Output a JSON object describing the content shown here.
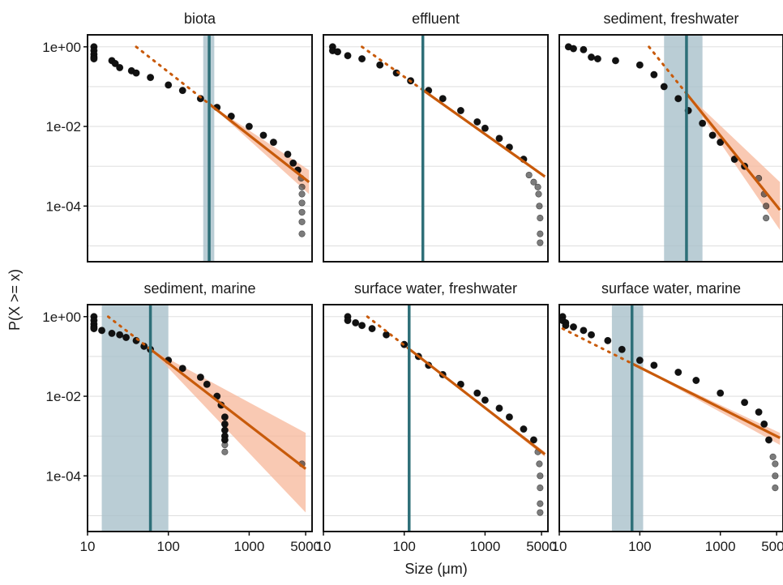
{
  "figure": {
    "ylabel": "P(X >= x)",
    "xlabel": "Size (μm)"
  },
  "colors": {
    "points": "#111111",
    "fit_line": "#c85a0a",
    "fit_ribbon": "#f7b79a",
    "xmin_line": "#2e6f78",
    "xmin_ribbon": "#a9c0cb",
    "grid": "#d9d9d9"
  },
  "chart_data": [
    {
      "type": "scatter",
      "title": "biota",
      "xlim": [
        10,
        6000
      ],
      "ylim": [
        4e-06,
        2
      ],
      "scale": "log-log",
      "yticks": [
        {
          "v": 1,
          "label": "1e+00"
        },
        {
          "v": 0.01,
          "label": "1e-02"
        },
        {
          "v": 0.0001,
          "label": "1e-04"
        }
      ],
      "xticks": [],
      "points": [
        [
          12,
          1
        ],
        [
          12,
          0.8
        ],
        [
          12,
          0.65
        ],
        [
          12,
          0.55
        ],
        [
          12,
          0.5
        ],
        [
          20,
          0.45
        ],
        [
          22,
          0.38
        ],
        [
          25,
          0.3
        ],
        [
          35,
          0.25
        ],
        [
          40,
          0.22
        ],
        [
          60,
          0.17
        ],
        [
          100,
          0.11
        ],
        [
          150,
          0.08
        ],
        [
          250,
          0.05
        ],
        [
          400,
          0.03
        ],
        [
          600,
          0.018
        ],
        [
          1000,
          0.01
        ],
        [
          1500,
          0.006
        ],
        [
          2000,
          0.004
        ],
        [
          3000,
          0.002
        ],
        [
          3500,
          0.0012
        ],
        [
          4000,
          0.0008
        ],
        [
          4400,
          0.0005
        ],
        [
          4500,
          0.0003
        ],
        [
          4500,
          0.0002
        ],
        [
          4500,
          0.00012
        ],
        [
          4500,
          7e-05
        ],
        [
          4500,
          4e-05
        ],
        [
          4500,
          2e-05
        ]
      ],
      "xmin": {
        "value": 320,
        "ci": [
          270,
          370
        ]
      },
      "fit": {
        "x_start": 40,
        "y_start": 1,
        "x_end": 5500,
        "y_end": 0.0004
      },
      "fit_band": {
        "lower_end": 0.0002,
        "upper_end": 0.0008
      }
    },
    {
      "type": "scatter",
      "title": "effluent",
      "xlim": [
        10,
        6000
      ],
      "ylim": [
        4e-06,
        2
      ],
      "scale": "log-log",
      "yticks": [],
      "xticks": [],
      "points": [
        [
          13,
          1
        ],
        [
          13,
          0.8
        ],
        [
          15,
          0.75
        ],
        [
          20,
          0.6
        ],
        [
          30,
          0.5
        ],
        [
          50,
          0.35
        ],
        [
          80,
          0.22
        ],
        [
          120,
          0.14
        ],
        [
          200,
          0.08
        ],
        [
          300,
          0.05
        ],
        [
          500,
          0.025
        ],
        [
          800,
          0.013
        ],
        [
          1000,
          0.009
        ],
        [
          1500,
          0.005
        ],
        [
          2000,
          0.003
        ],
        [
          3000,
          0.0015
        ],
        [
          3500,
          0.0006
        ],
        [
          4000,
          0.0004
        ],
        [
          4500,
          0.0003
        ],
        [
          4600,
          0.0002
        ],
        [
          4700,
          0.0001
        ],
        [
          4800,
          5e-05
        ],
        [
          4800,
          2e-05
        ],
        [
          4800,
          1.2e-05
        ]
      ],
      "xmin": {
        "value": 170,
        "ci": null
      },
      "fit": {
        "x_start": 30,
        "y_start": 1,
        "x_end": 5500,
        "y_end": 0.00055
      },
      "fit_band": {
        "lower_end": 0.0005,
        "upper_end": 0.0006
      }
    },
    {
      "type": "scatter",
      "title": "sediment, freshwater",
      "xlim": [
        10,
        6000
      ],
      "ylim": [
        4e-06,
        2
      ],
      "scale": "log-log",
      "yticks": [],
      "xticks": [],
      "points": [
        [
          13,
          1
        ],
        [
          15,
          0.9
        ],
        [
          20,
          0.85
        ],
        [
          25,
          0.55
        ],
        [
          30,
          0.5
        ],
        [
          50,
          0.45
        ],
        [
          100,
          0.35
        ],
        [
          150,
          0.2
        ],
        [
          200,
          0.1
        ],
        [
          300,
          0.05
        ],
        [
          400,
          0.025
        ],
        [
          600,
          0.012
        ],
        [
          800,
          0.006
        ],
        [
          1000,
          0.004
        ],
        [
          1500,
          0.0015
        ],
        [
          2000,
          0.001
        ],
        [
          3000,
          0.0005
        ],
        [
          3500,
          0.0002
        ],
        [
          3700,
          0.0001
        ],
        [
          3700,
          5e-05
        ]
      ],
      "xmin": {
        "value": 380,
        "ci": [
          200,
          600
        ]
      },
      "fit": {
        "x_start": 130,
        "y_start": 1,
        "x_end": 5500,
        "y_end": 8e-05
      },
      "fit_band": {
        "lower_end": 2.5e-05,
        "upper_end": 0.0004
      }
    },
    {
      "type": "scatter",
      "title": "sediment, marine",
      "xlim": [
        10,
        6000
      ],
      "ylim": [
        4e-06,
        2
      ],
      "scale": "log-log",
      "yticks": [
        {
          "v": 1,
          "label": "1e+00"
        },
        {
          "v": 0.01,
          "label": "1e-02"
        },
        {
          "v": 0.0001,
          "label": "1e-04"
        }
      ],
      "xticks": [
        {
          "v": 10,
          "label": "10"
        },
        {
          "v": 100,
          "label": "100"
        },
        {
          "v": 1000,
          "label": "1000"
        },
        {
          "v": 5000,
          "label": "5000"
        }
      ],
      "points": [
        [
          12,
          1
        ],
        [
          12,
          0.8
        ],
        [
          12,
          0.65
        ],
        [
          12,
          0.55
        ],
        [
          12,
          0.5
        ],
        [
          15,
          0.45
        ],
        [
          20,
          0.38
        ],
        [
          25,
          0.35
        ],
        [
          30,
          0.3
        ],
        [
          40,
          0.25
        ],
        [
          50,
          0.18
        ],
        [
          60,
          0.15
        ],
        [
          100,
          0.08
        ],
        [
          150,
          0.05
        ],
        [
          250,
          0.03
        ],
        [
          300,
          0.02
        ],
        [
          400,
          0.01
        ],
        [
          450,
          0.006
        ],
        [
          500,
          0.003
        ],
        [
          500,
          0.002
        ],
        [
          500,
          0.0014
        ],
        [
          500,
          0.001
        ],
        [
          500,
          0.0008
        ],
        [
          500,
          0.0006
        ],
        [
          500,
          0.0004
        ],
        [
          4500,
          0.0002
        ]
      ],
      "xmin": {
        "value": 60,
        "ci": [
          15,
          100
        ]
      },
      "fit": {
        "x_start": 18,
        "y_start": 1,
        "x_end": 5000,
        "y_end": 0.00015
      },
      "fit_band": {
        "lower_end": 1.2e-05,
        "upper_end": 0.0012
      }
    },
    {
      "type": "scatter",
      "title": "surface water, freshwater",
      "xlim": [
        10,
        6000
      ],
      "ylim": [
        4e-06,
        2
      ],
      "scale": "log-log",
      "yticks": [],
      "xticks": [
        {
          "v": 10,
          "label": "10"
        },
        {
          "v": 100,
          "label": "100"
        },
        {
          "v": 1000,
          "label": "1000"
        },
        {
          "v": 5000,
          "label": "5000"
        }
      ],
      "points": [
        [
          20,
          1
        ],
        [
          20,
          0.8
        ],
        [
          25,
          0.7
        ],
        [
          30,
          0.6
        ],
        [
          40,
          0.5
        ],
        [
          60,
          0.35
        ],
        [
          100,
          0.2
        ],
        [
          150,
          0.1
        ],
        [
          200,
          0.06
        ],
        [
          300,
          0.035
        ],
        [
          500,
          0.02
        ],
        [
          800,
          0.012
        ],
        [
          1000,
          0.008
        ],
        [
          1500,
          0.005
        ],
        [
          2000,
          0.003
        ],
        [
          3000,
          0.0015
        ],
        [
          4000,
          0.0008
        ],
        [
          4500,
          0.0004
        ],
        [
          4700,
          0.0002
        ],
        [
          4800,
          0.0001
        ],
        [
          4800,
          5e-05
        ],
        [
          4800,
          2e-05
        ],
        [
          4800,
          1.2e-05
        ]
      ],
      "xmin": {
        "value": 115,
        "ci": null
      },
      "fit": {
        "x_start": 35,
        "y_start": 1,
        "x_end": 5500,
        "y_end": 0.00035
      },
      "fit_band": {
        "lower_end": 0.0003,
        "upper_end": 0.0004
      }
    },
    {
      "type": "scatter",
      "title": "surface water, marine",
      "xlim": [
        10,
        6000
      ],
      "ylim": [
        4e-06,
        2
      ],
      "scale": "log-log",
      "yticks": [],
      "xticks": [
        {
          "v": 10,
          "label": "10"
        },
        {
          "v": 100,
          "label": "100"
        },
        {
          "v": 1000,
          "label": "1000"
        },
        {
          "v": 5000,
          "label": "5000"
        }
      ],
      "points": [
        [
          11,
          1
        ],
        [
          11,
          0.8
        ],
        [
          12,
          0.7
        ],
        [
          12,
          0.6
        ],
        [
          15,
          0.55
        ],
        [
          20,
          0.45
        ],
        [
          25,
          0.35
        ],
        [
          40,
          0.25
        ],
        [
          60,
          0.15
        ],
        [
          100,
          0.08
        ],
        [
          150,
          0.06
        ],
        [
          300,
          0.04
        ],
        [
          500,
          0.025
        ],
        [
          1000,
          0.012
        ],
        [
          2000,
          0.007
        ],
        [
          3000,
          0.004
        ],
        [
          3500,
          0.002
        ],
        [
          4000,
          0.0008
        ],
        [
          4500,
          0.0003
        ],
        [
          4800,
          0.0002
        ],
        [
          4800,
          0.0001
        ],
        [
          4800,
          5e-05
        ]
      ],
      "xmin": {
        "value": 80,
        "ci": [
          45,
          110
        ]
      },
      "fit": {
        "x_start": 11,
        "y_start": 0.5,
        "x_end": 5500,
        "y_end": 0.0009
      },
      "fit_band": {
        "lower_end": 0.0006,
        "upper_end": 0.0012
      }
    }
  ]
}
